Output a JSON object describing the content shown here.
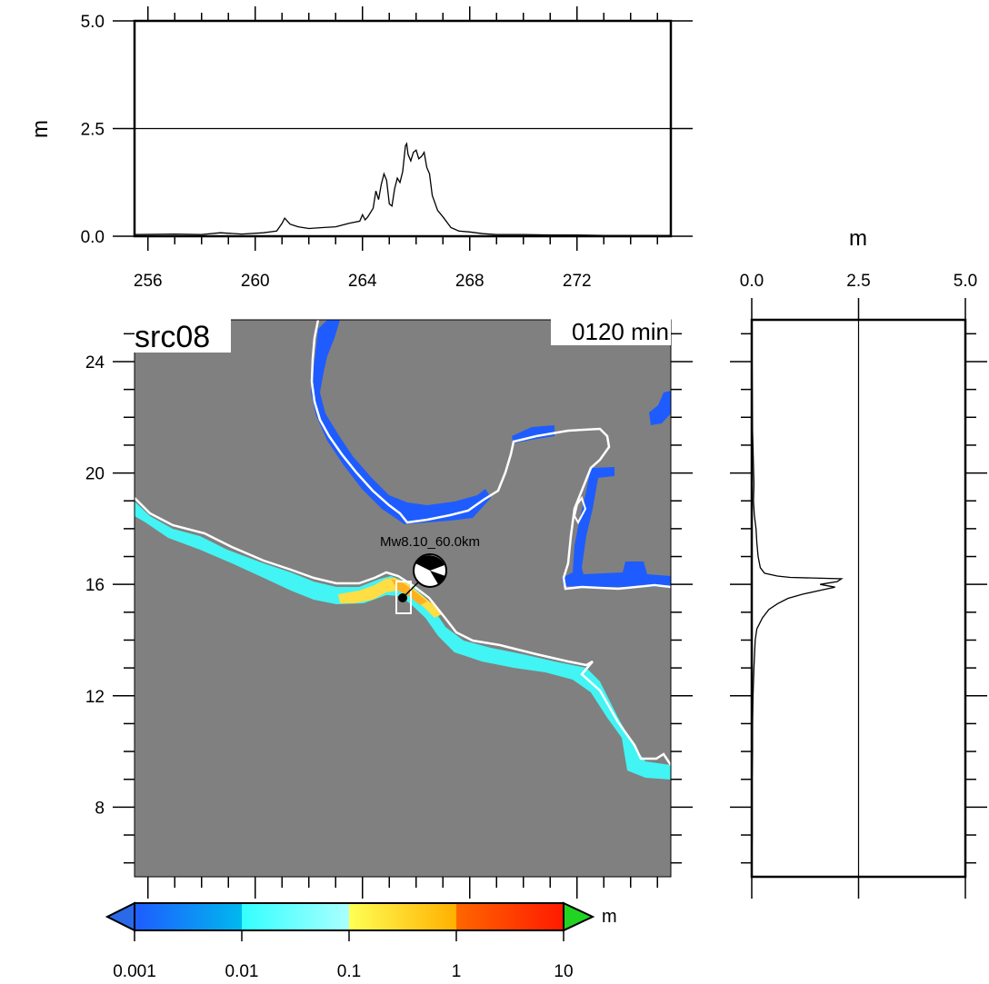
{
  "chart_data": [
    {
      "type": "line",
      "panel": "top-profile",
      "ylabel": "m",
      "xticks": [
        "256",
        "260",
        "264",
        "268",
        "272"
      ],
      "yticks": [
        "0.0",
        "2.5",
        "5.0"
      ],
      "xlim": [
        255.5,
        275.5
      ],
      "ylim": [
        0,
        5
      ],
      "reference_line": 2.5,
      "x": [
        255.5,
        257.0,
        258.0,
        258.7,
        259.5,
        260.3,
        260.8,
        261.0,
        261.1,
        261.3,
        261.6,
        262.0,
        262.5,
        263.0,
        263.5,
        263.9,
        264.0,
        264.1,
        264.2,
        264.4,
        264.5,
        264.6,
        264.7,
        264.8,
        264.9,
        265.0,
        265.1,
        265.2,
        265.3,
        265.4,
        265.5,
        265.6,
        265.65,
        265.7,
        265.8,
        265.9,
        266.0,
        266.1,
        266.2,
        266.3,
        266.4,
        266.5,
        266.6,
        266.8,
        267.0,
        267.3,
        267.6,
        268.0,
        268.5,
        269.0,
        270.0,
        271.0,
        272.0,
        273.0,
        274.0,
        275.5
      ],
      "values": [
        0.04,
        0.05,
        0.04,
        0.08,
        0.05,
        0.08,
        0.12,
        0.3,
        0.42,
        0.28,
        0.22,
        0.18,
        0.2,
        0.22,
        0.3,
        0.35,
        0.5,
        0.38,
        0.45,
        0.65,
        1.05,
        0.85,
        1.2,
        1.45,
        1.3,
        0.75,
        0.7,
        1.1,
        1.35,
        1.25,
        1.5,
        2.1,
        2.15,
        1.9,
        1.75,
        1.95,
        2.0,
        1.8,
        1.85,
        1.95,
        1.6,
        1.45,
        0.95,
        0.6,
        0.45,
        0.2,
        0.12,
        0.1,
        0.06,
        0.04,
        0.04,
        0.03,
        0.03,
        0.02,
        0.02,
        0.02
      ]
    },
    {
      "type": "line",
      "panel": "right-profile",
      "xlabel": "m",
      "xticks": [
        "0.0",
        "2.5",
        "5.0"
      ],
      "xlim": [
        0,
        5
      ],
      "ylim": [
        5.5,
        25.5
      ],
      "reference_line": 2.5,
      "y": [
        25.5,
        21.5,
        19.6,
        19.0,
        18.5,
        18.0,
        17.5,
        17.0,
        16.6,
        16.4,
        16.3,
        16.25,
        16.2,
        16.1,
        16.0,
        15.9,
        15.8,
        15.65,
        15.5,
        15.3,
        15.1,
        14.8,
        14.4,
        14.0,
        13.0,
        12.0,
        11.0,
        10.0,
        9.0,
        8.0,
        7.0,
        5.5
      ],
      "values": [
        0.0,
        0.02,
        0.05,
        0.04,
        0.06,
        0.1,
        0.12,
        0.15,
        0.2,
        0.3,
        0.6,
        0.9,
        2.1,
        2.0,
        1.6,
        1.95,
        1.65,
        1.2,
        0.85,
        0.6,
        0.4,
        0.25,
        0.12,
        0.08,
        0.05,
        0.03,
        0.02,
        0.02,
        0.01,
        0.01,
        0.01,
        0.0
      ]
    },
    {
      "type": "heatmap",
      "panel": "map",
      "title": "src08",
      "time_label": "0120 min",
      "yticks": [
        "24",
        "20",
        "16",
        "12",
        "8"
      ],
      "xlim": [
        255.5,
        275.5
      ],
      "ylim": [
        5.5,
        25.5
      ],
      "source_label": "Mw8.10_60.0km",
      "epicenter": {
        "lon": 265.4,
        "lat": 15.5
      },
      "colors": {
        "water": "#808080",
        "coast": "#ffffff",
        "land": "#808080"
      }
    }
  ],
  "colorbar": {
    "unit": "m",
    "ticks": [
      "0.001",
      "0.01",
      "0.1",
      "1",
      "10"
    ],
    "stops": [
      "#1e5cff",
      "#00b8ee",
      "#33ffff",
      "#aaffff",
      "#ffff55",
      "#ffb000",
      "#ff6600",
      "#ff1a00"
    ],
    "under_color": "#2a6ae8",
    "over_color": "#22d422"
  }
}
